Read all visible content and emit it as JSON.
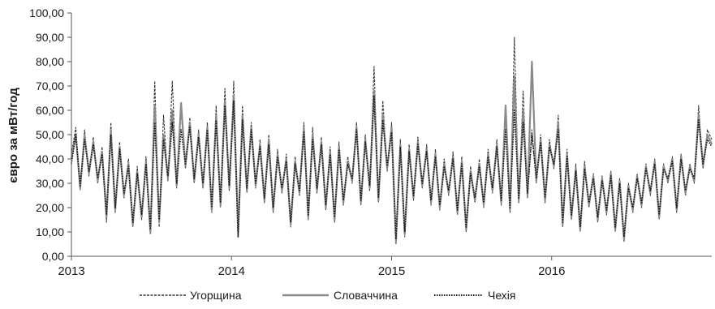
{
  "chart_data": {
    "type": "line",
    "title": "",
    "xlabel": "",
    "ylabel": "євро за мВт/год",
    "ylim": [
      0,
      100
    ],
    "yticks": [
      "0,00",
      "10,00",
      "20,00",
      "30,00",
      "40,00",
      "50,00",
      "60,00",
      "70,00",
      "80,00",
      "90,00",
      "100,00"
    ],
    "xlim": [
      "2013-01-01",
      "2016-12-31"
    ],
    "xticks": [
      {
        "label": "2013",
        "date": "2013-01-01"
      },
      {
        "label": "2014",
        "date": "2014-01-01"
      },
      {
        "label": "2015",
        "date": "2015-01-01"
      },
      {
        "label": "2016",
        "date": "2016-01-01"
      }
    ],
    "grid": false,
    "legend_position": "bottom",
    "x": [
      "2013-01-01",
      "2013-01-11",
      "2013-01-21",
      "2013-01-31",
      "2013-02-10",
      "2013-02-20",
      "2013-03-02",
      "2013-03-12",
      "2013-03-22",
      "2013-04-01",
      "2013-04-11",
      "2013-04-21",
      "2013-05-01",
      "2013-05-11",
      "2013-05-21",
      "2013-05-31",
      "2013-06-10",
      "2013-06-20",
      "2013-06-30",
      "2013-07-10",
      "2013-07-20",
      "2013-07-30",
      "2013-08-09",
      "2013-08-19",
      "2013-08-29",
      "2013-09-08",
      "2013-09-18",
      "2013-09-28",
      "2013-10-08",
      "2013-10-18",
      "2013-10-28",
      "2013-11-07",
      "2013-11-17",
      "2013-11-27",
      "2013-12-07",
      "2013-12-17",
      "2013-12-27",
      "2014-01-06",
      "2014-01-16",
      "2014-01-26",
      "2014-02-05",
      "2014-02-15",
      "2014-02-25",
      "2014-03-07",
      "2014-03-17",
      "2014-03-27",
      "2014-04-06",
      "2014-04-16",
      "2014-04-26",
      "2014-05-06",
      "2014-05-16",
      "2014-05-26",
      "2014-06-05",
      "2014-06-15",
      "2014-06-25",
      "2014-07-05",
      "2014-07-15",
      "2014-07-25",
      "2014-08-04",
      "2014-08-14",
      "2014-08-24",
      "2014-09-03",
      "2014-09-13",
      "2014-09-23",
      "2014-10-03",
      "2014-10-13",
      "2014-10-23",
      "2014-11-02",
      "2014-11-12",
      "2014-11-22",
      "2014-12-02",
      "2014-12-12",
      "2014-12-22",
      "2015-01-01",
      "2015-01-11",
      "2015-01-21",
      "2015-01-31",
      "2015-02-10",
      "2015-02-20",
      "2015-03-02",
      "2015-03-12",
      "2015-03-22",
      "2015-04-01",
      "2015-04-11",
      "2015-04-21",
      "2015-05-01",
      "2015-05-11",
      "2015-05-21",
      "2015-05-31",
      "2015-06-10",
      "2015-06-20",
      "2015-06-30",
      "2015-07-10",
      "2015-07-20",
      "2015-07-30",
      "2015-08-09",
      "2015-08-19",
      "2015-08-29",
      "2015-09-08",
      "2015-09-18",
      "2015-09-28",
      "2015-10-08",
      "2015-10-18",
      "2015-10-28",
      "2015-11-07",
      "2015-11-17",
      "2015-11-27",
      "2015-12-07",
      "2015-12-17",
      "2015-12-27",
      "2016-01-06",
      "2016-01-16",
      "2016-01-26",
      "2016-02-05",
      "2016-02-15",
      "2016-02-25",
      "2016-03-06",
      "2016-03-16",
      "2016-03-26",
      "2016-04-05",
      "2016-04-15",
      "2016-04-25",
      "2016-05-05",
      "2016-05-15",
      "2016-05-25",
      "2016-06-04",
      "2016-06-14",
      "2016-06-24",
      "2016-07-04",
      "2016-07-14",
      "2016-07-24",
      "2016-08-03",
      "2016-08-13",
      "2016-08-23",
      "2016-09-02",
      "2016-09-12",
      "2016-09-22",
      "2016-10-02",
      "2016-10-12",
      "2016-10-22",
      "2016-11-01",
      "2016-11-11",
      "2016-11-21",
      "2016-12-01",
      "2016-12-11",
      "2016-12-21",
      "2016-12-31"
    ],
    "series": [
      {
        "name": "Угорщина",
        "style": "dashed-thin",
        "color": "#333333",
        "values": [
          42,
          53,
          27,
          52,
          33,
          49,
          30,
          45,
          14,
          55,
          18,
          47,
          24,
          40,
          12,
          37,
          15,
          41,
          9,
          72,
          12,
          58,
          31,
          72,
          28,
          60,
          36,
          57,
          30,
          52,
          28,
          55,
          18,
          62,
          20,
          69,
          27,
          72,
          9,
          62,
          26,
          55,
          28,
          48,
          22,
          50,
          18,
          44,
          26,
          42,
          12,
          41,
          25,
          55,
          15,
          53,
          26,
          49,
          19,
          45,
          14,
          47,
          21,
          41,
          30,
          55,
          21,
          50,
          27,
          78,
          22,
          64,
          35,
          55,
          5,
          48,
          8,
          46,
          23,
          49,
          28,
          46,
          21,
          44,
          19,
          40,
          25,
          43,
          17,
          41,
          10,
          37,
          22,
          40,
          20,
          44,
          26,
          48,
          21,
          60,
          18,
          90,
          22,
          68,
          24,
          52,
          30,
          50,
          22,
          48,
          36,
          58,
          12,
          44,
          15,
          38,
          10,
          39,
          20,
          34,
          14,
          33,
          17,
          35,
          10,
          32,
          6,
          30,
          18,
          34,
          20,
          38,
          25,
          40,
          15,
          38,
          30,
          41,
          18,
          42,
          25,
          38,
          30,
          62,
          36,
          52,
          48
        ]
      },
      {
        "name": "Словаччина",
        "style": "solid-gray",
        "color": "#8a8a8a",
        "values": [
          40,
          50,
          28,
          50,
          34,
          47,
          31,
          43,
          16,
          52,
          19,
          45,
          25,
          38,
          13,
          35,
          16,
          39,
          10,
          62,
          14,
          50,
          32,
          60,
          29,
          63,
          37,
          55,
          31,
          50,
          29,
          53,
          19,
          58,
          21,
          64,
          28,
          66,
          10,
          58,
          27,
          53,
          29,
          46,
          23,
          48,
          19,
          42,
          27,
          40,
          13,
          39,
          26,
          53,
          16,
          50,
          27,
          47,
          20,
          43,
          15,
          45,
          22,
          39,
          31,
          53,
          22,
          48,
          28,
          68,
          23,
          58,
          36,
          53,
          6,
          46,
          9,
          44,
          24,
          47,
          29,
          44,
          22,
          42,
          20,
          38,
          26,
          41,
          18,
          39,
          11,
          35,
          23,
          38,
          21,
          42,
          27,
          46,
          22,
          62,
          19,
          74,
          23,
          60,
          25,
          80,
          31,
          48,
          23,
          46,
          37,
          55,
          13,
          42,
          16,
          36,
          11,
          37,
          21,
          33,
          15,
          32,
          18,
          34,
          11,
          31,
          7,
          29,
          19,
          33,
          21,
          37,
          26,
          39,
          16,
          37,
          31,
          40,
          19,
          41,
          26,
          37,
          31,
          58,
          37,
          50,
          46
        ]
      },
      {
        "name": "Чехія",
        "style": "dotted",
        "color": "#111111",
        "values": [
          38,
          50,
          29,
          48,
          35,
          46,
          32,
          42,
          17,
          50,
          20,
          44,
          26,
          37,
          14,
          34,
          17,
          38,
          11,
          55,
          15,
          48,
          33,
          55,
          30,
          52,
          38,
          53,
          32,
          49,
          30,
          52,
          20,
          56,
          22,
          62,
          29,
          64,
          8,
          56,
          28,
          52,
          30,
          45,
          24,
          46,
          20,
          41,
          28,
          39,
          14,
          38,
          27,
          51,
          17,
          48,
          28,
          46,
          21,
          42,
          16,
          44,
          23,
          38,
          32,
          52,
          23,
          47,
          29,
          66,
          24,
          56,
          37,
          51,
          7,
          45,
          10,
          43,
          25,
          46,
          30,
          43,
          23,
          41,
          21,
          37,
          27,
          40,
          19,
          38,
          12,
          34,
          24,
          37,
          22,
          41,
          28,
          45,
          23,
          52,
          20,
          60,
          24,
          55,
          26,
          50,
          32,
          47,
          24,
          45,
          38,
          52,
          14,
          41,
          17,
          35,
          12,
          36,
          22,
          32,
          16,
          31,
          19,
          33,
          12,
          30,
          8,
          28,
          20,
          32,
          22,
          36,
          27,
          38,
          17,
          36,
          32,
          39,
          20,
          40,
          27,
          36,
          32,
          56,
          38,
          48,
          45
        ]
      }
    ]
  }
}
